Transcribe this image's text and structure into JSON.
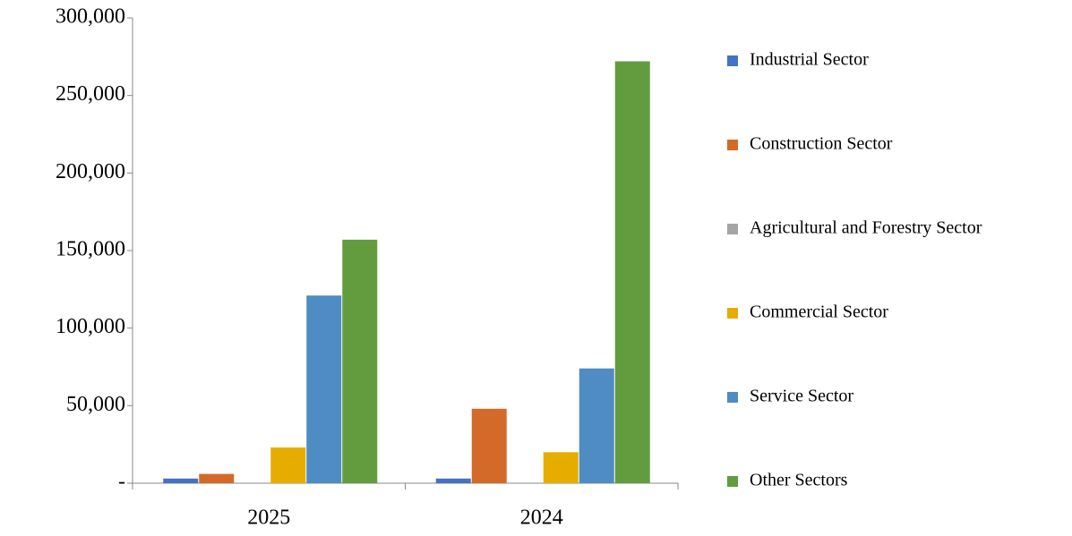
{
  "chart_data": {
    "type": "bar",
    "categories": [
      "2025",
      "2024"
    ],
    "series": [
      {
        "name": "Industrial Sector",
        "color": "#4472c4",
        "values": [
          3000,
          3000
        ]
      },
      {
        "name": "Construction Sector",
        "color": "#d46a2a",
        "values": [
          6000,
          48000
        ]
      },
      {
        "name": "Agricultural and Forestry Sector",
        "color": "#a5a5a5",
        "values": [
          0,
          0
        ]
      },
      {
        "name": "Commercial Sector",
        "color": "#e6ac00",
        "values": [
          23000,
          20000
        ]
      },
      {
        "name": "Service Sector",
        "color": "#4f8cc4",
        "values": [
          121000,
          74000
        ]
      },
      {
        "name": "Other Sectors",
        "color": "#629c3f",
        "values": [
          157000,
          272000
        ]
      }
    ],
    "ylim": [
      0,
      300000
    ],
    "yticks": [
      {
        "value": 0,
        "label": "-"
      },
      {
        "value": 50000,
        "label": "50,000"
      },
      {
        "value": 100000,
        "label": "100,000"
      },
      {
        "value": 150000,
        "label": "150,000"
      },
      {
        "value": 200000,
        "label": "200,000"
      },
      {
        "value": 250000,
        "label": "250,000"
      },
      {
        "value": 300000,
        "label": "300,000"
      }
    ],
    "grid": false,
    "legend": "right"
  }
}
